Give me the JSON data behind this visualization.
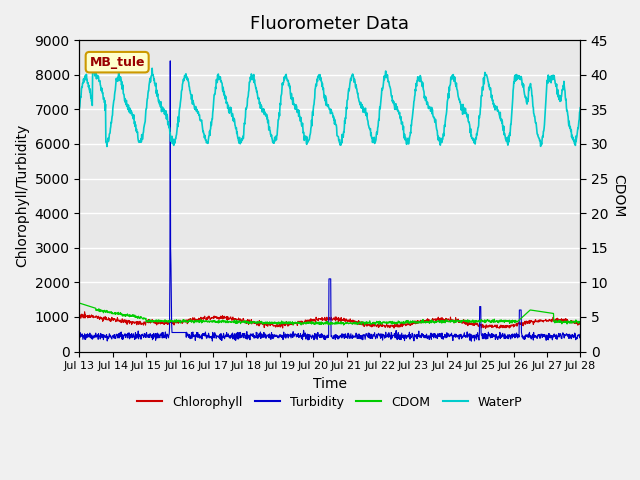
{
  "title": "Fluorometer Data",
  "xlabel": "Time",
  "ylabel_left": "Chlorophyll/Turbidity",
  "ylabel_right": "CDOM",
  "ylim_left": [
    0,
    9000
  ],
  "ylim_right": [
    0,
    45
  ],
  "station_label": "MB_tule",
  "x_tick_labels": [
    "Jul 13",
    "Jul 14",
    "Jul 15",
    "Jul 16",
    "Jul 17",
    "Jul 18",
    "Jul 19",
    "Jul 20",
    "Jul 21",
    "Jul 22",
    "Jul 23",
    "Jul 24",
    "Jul 25",
    "Jul 26",
    "Jul 27",
    "Jul 28"
  ],
  "legend_entries": [
    "Chlorophyll",
    "Turbidity",
    "CDOM",
    "WaterP"
  ],
  "legend_colors": [
    "#cc0000",
    "#0000cc",
    "#00cc00",
    "#00cccc"
  ],
  "background_color": "#e8e8e8",
  "grid_color": "#ffffff",
  "title_fontsize": 13,
  "label_fontsize": 10
}
